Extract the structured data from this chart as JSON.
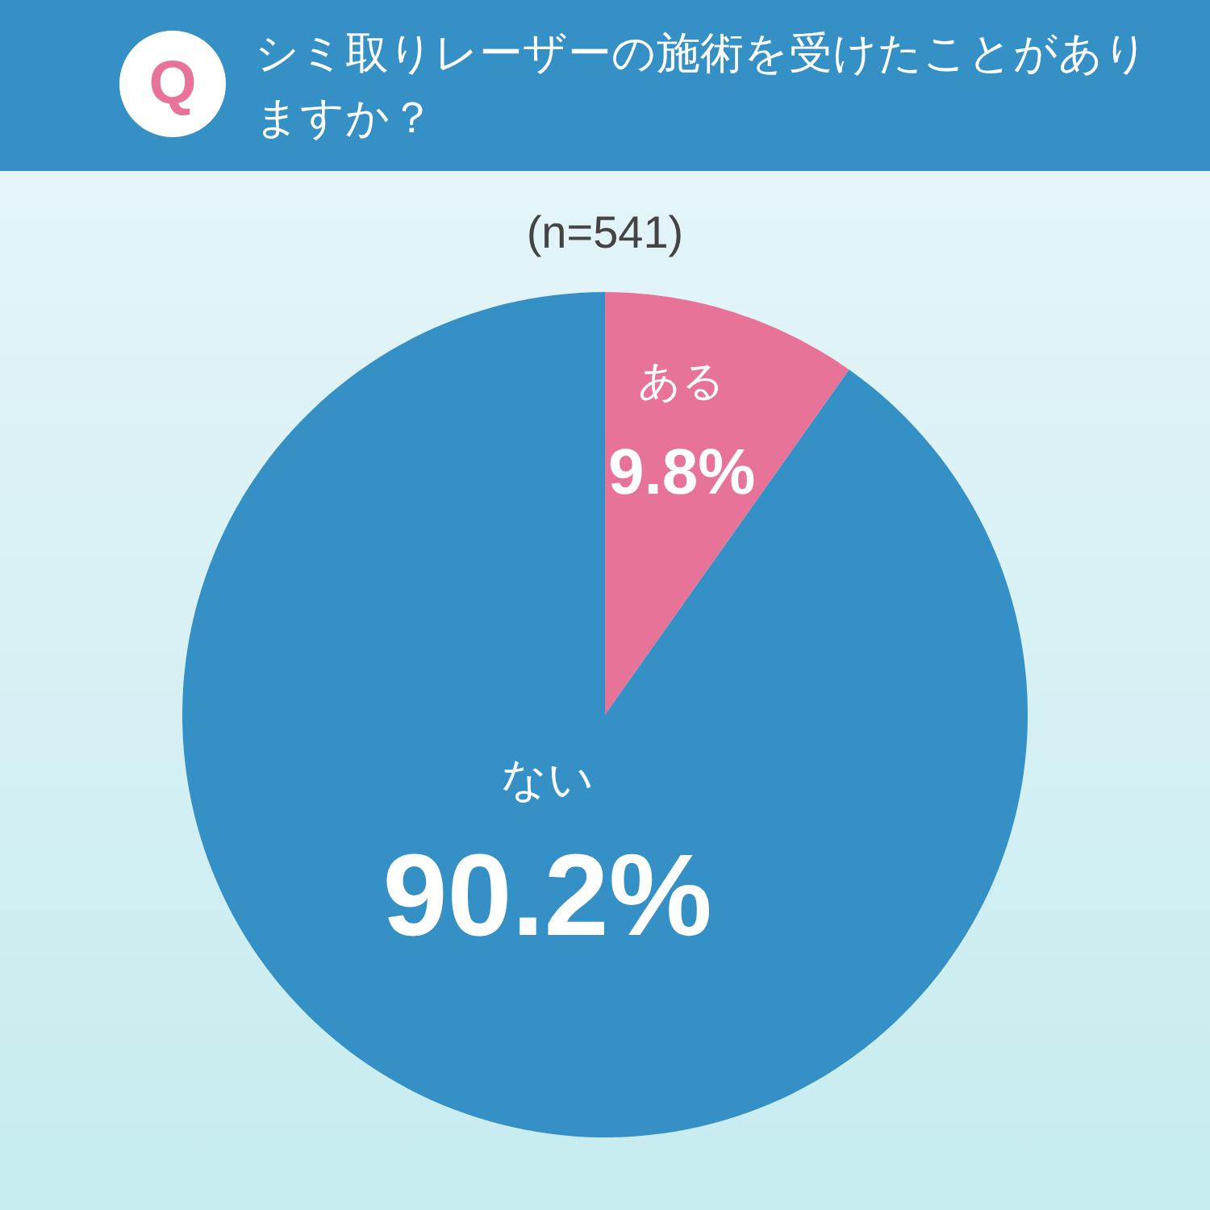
{
  "chart_data": {
    "type": "pie",
    "title": "シミ取りレーザーの施術を受けたことがありますか？",
    "subtitle": "(n=541)",
    "annotations": [
      "Q"
    ],
    "categories": [
      "ある",
      "ない"
    ],
    "values": [
      9.8,
      90.2
    ],
    "colors": [
      "#e87399",
      "#3590c6"
    ],
    "value_labels": [
      "9.8%",
      "90.2%"
    ],
    "legend": false
  }
}
